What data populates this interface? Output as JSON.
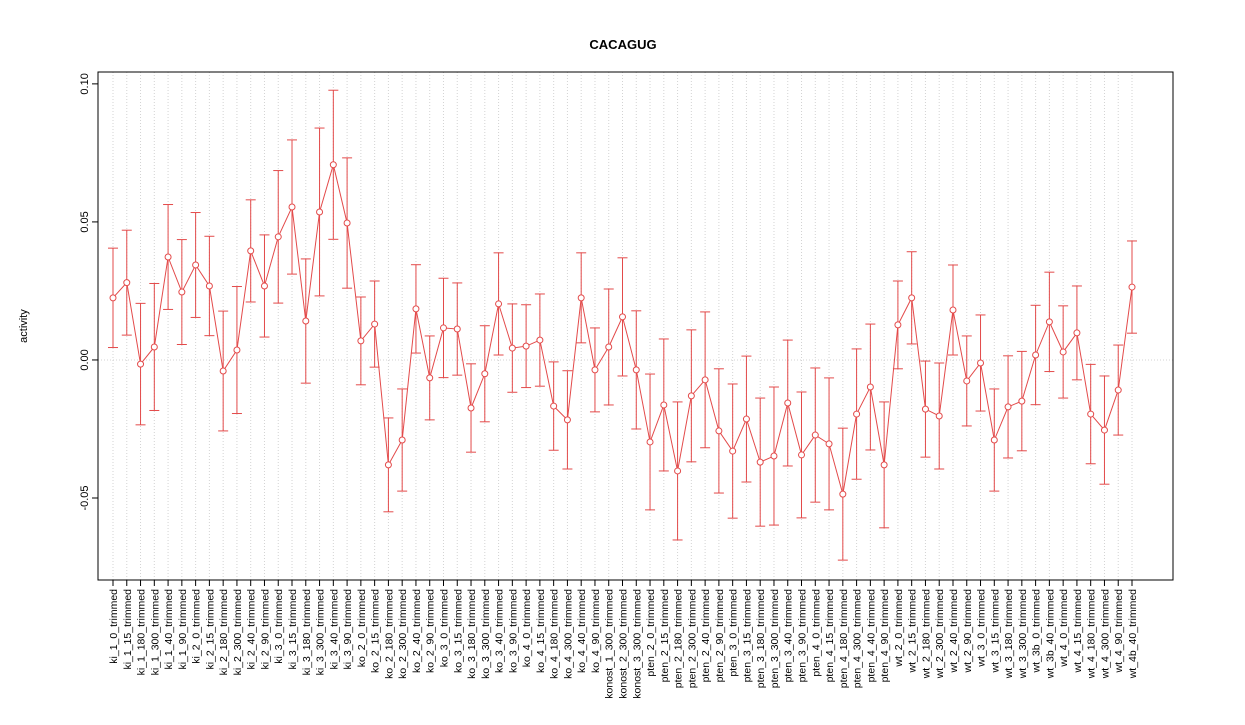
{
  "chart_data": {
    "type": "line",
    "title": "CACAGUG",
    "ylabel": "activity",
    "categories": [
      "ki_1_0_trimmed",
      "ki_1_15_trimmed",
      "ki_1_180_trimmed",
      "ki_1_300_trimmed",
      "ki_1_40_trimmed",
      "ki_1_90_trimmed",
      "ki_2_0_trimmed",
      "ki_2_15_trimmed",
      "ki_2_180_trimmed",
      "ki_2_300_trimmed",
      "ki_2_40_trimmed",
      "ki_2_90_trimmed",
      "ki_3_0_trimmed",
      "ki_3_15_trimmed",
      "ki_3_180_trimmed",
      "ki_3_300_trimmed",
      "ki_3_40_trimmed",
      "ki_3_90_trimmed",
      "ko_2_0_trimmed",
      "ko_2_15_trimmed",
      "ko_2_180_trimmed",
      "ko_2_300_trimmed",
      "ko_2_40_trimmed",
      "ko_2_90_trimmed",
      "ko_3_0_trimmed",
      "ko_3_15_trimmed",
      "ko_3_180_trimmed",
      "ko_3_300_trimmed",
      "ko_3_40_trimmed",
      "ko_3_90_trimmed",
      "ko_4_0_trimmed",
      "ko_4_15_trimmed",
      "ko_4_180_trimmed",
      "ko_4_300_trimmed",
      "ko_4_40_trimmed",
      "ko_4_90_trimmed",
      "konost_1_300_trimmed",
      "konost_2_300_trimmed",
      "konost_3_300_trimmed",
      "pten_2_0_trimmed",
      "pten_2_15_trimmed",
      "pten_2_180_trimmed",
      "pten_2_300_trimmed",
      "pten_2_40_trimmed",
      "pten_2_90_trimmed",
      "pten_3_0_trimmed",
      "pten_3_15_trimmed",
      "pten_3_180_trimmed",
      "pten_3_300_trimmed",
      "pten_3_40_trimmed",
      "pten_3_90_trimmed",
      "pten_4_0_trimmed",
      "pten_4_15_trimmed",
      "pten_4_180_trimmed",
      "pten_4_300_trimmed",
      "pten_4_40_trimmed",
      "pten_4_90_trimmed",
      "wt_2_0_trimmed",
      "wt_2_15_trimmed",
      "wt_2_180_trimmed",
      "wt_2_300_trimmed",
      "wt_2_40_trimmed",
      "wt_2_90_trimmed",
      "wt_3_0_trimmed",
      "wt_3_15_trimmed",
      "wt_3_180_trimmed",
      "wt_3_300_trimmed",
      "wt_3b_0_trimmed",
      "wt_3b_40_trimmed",
      "wt_4_0_trimmed",
      "wt_4_15_trimmed",
      "wt_4_180_trimmed",
      "wt_4_300_trimmed",
      "wt_4_90_trimmed",
      "wt_4b_40_trimmed"
    ],
    "values": [
      0.0225,
      0.028,
      -0.0015,
      0.0047,
      0.0373,
      0.0246,
      0.0344,
      0.0268,
      -0.004,
      0.0036,
      0.0395,
      0.0268,
      0.0446,
      0.0554,
      0.0141,
      0.0536,
      0.0707,
      0.0496,
      0.0069,
      0.013,
      -0.038,
      -0.029,
      0.0185,
      -0.0065,
      0.0116,
      0.0112,
      -0.0174,
      -0.005,
      0.0203,
      0.0043,
      0.005,
      0.0072,
      -0.0167,
      -0.0217,
      0.0225,
      -0.0036,
      0.0047,
      0.0156,
      -0.0036,
      -0.0297,
      -0.0163,
      -0.0402,
      -0.013,
      -0.0072,
      -0.0257,
      -0.033,
      -0.0214,
      -0.037,
      -0.0348,
      -0.0156,
      -0.0344,
      -0.0272,
      -0.0304,
      -0.0486,
      -0.0196,
      -0.0098,
      -0.038,
      0.0127,
      0.0225,
      -0.0178,
      -0.0203,
      0.0181,
      -0.0076,
      -0.0011,
      -0.029,
      -0.017,
      -0.0149,
      0.0018,
      0.0138,
      0.0029,
      0.0098,
      -0.0196,
      -0.0254,
      -0.0109,
      0.0264
    ],
    "errors": [
      0.018,
      0.019,
      0.022,
      0.023,
      0.019,
      0.019,
      0.019,
      0.018,
      0.0217,
      0.023,
      0.0185,
      0.0185,
      0.024,
      0.0243,
      0.0225,
      0.0304,
      0.027,
      0.0236,
      0.0159,
      0.0156,
      0.017,
      0.0185,
      0.016,
      0.0152,
      0.018,
      0.0167,
      0.016,
      0.0174,
      0.0185,
      0.016,
      0.015,
      0.0167,
      0.016,
      0.0178,
      0.0163,
      0.0152,
      0.021,
      0.0214,
      0.0214,
      0.0246,
      0.0239,
      0.025,
      0.0239,
      0.0246,
      0.0225,
      0.0243,
      0.0228,
      0.0232,
      0.025,
      0.0228,
      0.0228,
      0.0243,
      0.0239,
      0.0239,
      0.0236,
      0.0228,
      0.0228,
      0.0159,
      0.0167,
      0.0174,
      0.0192,
      0.0163,
      0.0163,
      0.0174,
      0.0185,
      0.0185,
      0.018,
      0.018,
      0.018,
      0.0167,
      0.017,
      0.018,
      0.0196,
      0.0163,
      0.0167
    ],
    "color": "#e34a4a",
    "ylim": [
      -0.0797,
      0.1043
    ],
    "yticks": [
      -0.05,
      {
        "value": 0,
        "label": "0.00"
      },
      0.05,
      {
        "value": 0.1,
        "label": "0.10"
      }
    ],
    "grid": true
  }
}
